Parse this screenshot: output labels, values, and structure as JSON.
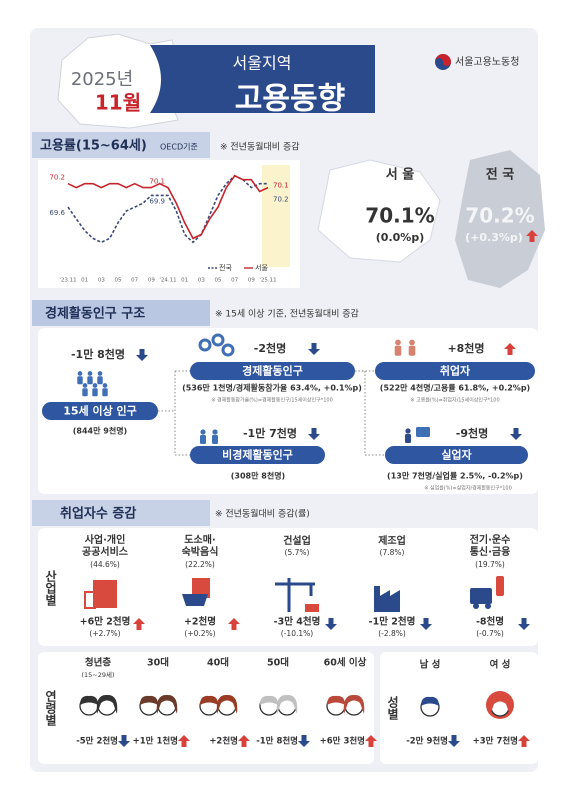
{
  "header": {
    "year": "2025년",
    "month": "11월",
    "region": "서울지역",
    "title": "고용동향",
    "agency": "서울고용노동청"
  },
  "employment_rate": {
    "heading": "고용률(15~64세)",
    "basis": "OECD기준",
    "note": "※ 전년동월대비 증감",
    "cards": [
      {
        "name": "서 울",
        "value": "70.1%",
        "change": "(0.0%p)"
      },
      {
        "name": "전 국",
        "value": "70.2%",
        "change": "(+0.3%p)",
        "arrow": "up"
      }
    ]
  },
  "chart_data": {
    "type": "line",
    "categories": [
      "'23.11",
      null,
      "01",
      null,
      "03",
      null,
      "05",
      null,
      "07",
      null,
      "09",
      null,
      "'24.11",
      null,
      "01",
      null,
      "03",
      null,
      "05",
      null,
      "07",
      null,
      "09",
      null,
      "'25.11"
    ],
    "series": [
      {
        "name": "전국",
        "color": "#3a4a78",
        "dashed": true,
        "values": [
          69.6,
          69.3,
          69.0,
          68.8,
          68.7,
          68.8,
          69.2,
          69.5,
          69.6,
          69.7,
          69.9,
          69.9,
          69.9,
          69.5,
          68.9,
          68.7,
          68.9,
          69.4,
          69.9,
          70.2,
          70.4,
          70.3,
          70.1,
          70.2,
          70.2
        ]
      },
      {
        "name": "서울",
        "color": "#c8242b",
        "dashed": false,
        "values": [
          70.2,
          70.1,
          70.2,
          70.2,
          70.1,
          70.2,
          70.2,
          70.1,
          70.2,
          70.1,
          70.1,
          70.2,
          70.1,
          69.7,
          69.2,
          68.8,
          68.9,
          69.3,
          69.6,
          70.1,
          70.4,
          70.3,
          70.3,
          70.0,
          70.1
        ]
      }
    ],
    "ylim": [
      68.3,
      70.6
    ],
    "grid": false,
    "legend": "bottom-right"
  },
  "economic_population": {
    "heading": "경제활동인구 구조",
    "note": "※ 15세 이상 기준,  전년동월대비 증감",
    "nodes": [
      {
        "label": "15세 이상 인구",
        "change": "-1만 8천명",
        "arrow": "down",
        "detail": "(844만 9천명)"
      },
      {
        "label": "경제활동인구",
        "change": "-2천명",
        "arrow": "down",
        "detail": "(536만 1천명/경제활동참가율 63.4%, +0.1%p)",
        "formula": "※ 경제활동참가율(%)=경제활동인구/15세이상인구*100"
      },
      {
        "label": "비경제활동인구",
        "change": "-1만 7천명",
        "arrow": "down",
        "detail": "(308만 8천명)"
      },
      {
        "label": "취업자",
        "change": "+8천명",
        "arrow": "up",
        "detail": "(522만 4천명/고용률 61.8%, +0.2%p)",
        "formula": "※ 고용률(%)=취업자/15세이상인구*100"
      },
      {
        "label": "실업자",
        "change": "-9천명",
        "arrow": "down",
        "detail": "(13만 7천명/실업률 2.5%, -0.2%p)",
        "formula": "※ 실업률(%)=실업자/경제활동인구*100"
      }
    ]
  },
  "employed_change": {
    "heading": "취업자수 증감",
    "note": "※ 전년동월대비 증감(률)",
    "industry_label": "산업별",
    "industries": [
      {
        "name": [
          "사업·개인",
          "공공서비스"
        ],
        "share": "(44.6%)",
        "change": "+6만 2천명",
        "rate": "(+2.7%)",
        "arrow": "up"
      },
      {
        "name": [
          "도소매·",
          "숙박음식"
        ],
        "share": "(22.2%)",
        "change": "+2천명",
        "rate": "(+0.2%)",
        "arrow": "up"
      },
      {
        "name": [
          "건설업"
        ],
        "share": "(5.7%)",
        "change": "-3만 4천명",
        "rate": "(-10.1%)",
        "arrow": "down"
      },
      {
        "name": [
          "제조업"
        ],
        "share": "(7.8%)",
        "change": "-1만 2천명",
        "rate": "(-2.8%)",
        "arrow": "down"
      },
      {
        "name": [
          "전기·운수",
          "통신·금융"
        ],
        "share": "(19.7%)",
        "change": "-8천명",
        "rate": "(-0.7%)",
        "arrow": "down"
      }
    ],
    "age_label": "연령별",
    "ages": [
      {
        "name": "청년층",
        "sub": "(15~29세)",
        "change": "-5만 2천명",
        "arrow": "down"
      },
      {
        "name": "30대",
        "change": "+1만 1천명",
        "arrow": "up"
      },
      {
        "name": "40대",
        "change": "+2천명",
        "arrow": "up"
      },
      {
        "name": "50대",
        "change": "-1만 8천명",
        "arrow": "down"
      },
      {
        "name": "60세 이상",
        "change": "+6만 3천명",
        "arrow": "up"
      }
    ],
    "gender_label": "성별",
    "genders": [
      {
        "name": "남 성",
        "change": "-2만 9천명",
        "arrow": "down"
      },
      {
        "name": "여 성",
        "change": "+3만 7천명",
        "arrow": "up"
      }
    ]
  }
}
